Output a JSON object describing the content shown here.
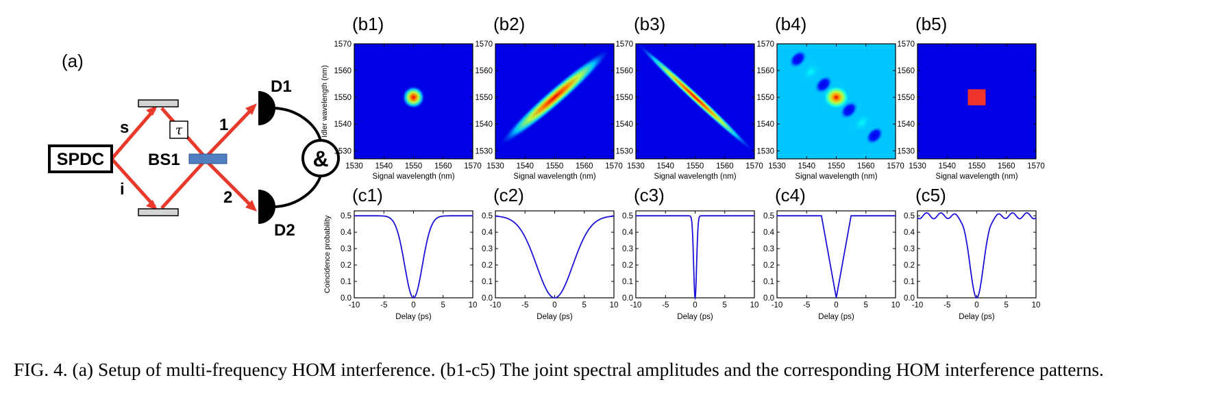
{
  "setup": {
    "label": "(a)",
    "source": "SPDC",
    "beam_splitter": "BS1",
    "delay": "τ",
    "coincidence": "&",
    "arm_signal": "s",
    "arm_idler": "i",
    "port_1": "1",
    "port_2": "2",
    "detector_1": "D1",
    "detector_2": "D2",
    "colors": {
      "beam": "#e8392b",
      "beam_splitter": "#4f7fc0",
      "mirror": "#d4d4d4"
    }
  },
  "jsa_labels": [
    "(b1)",
    "(b2)",
    "(b3)",
    "(b4)",
    "(b5)"
  ],
  "hom_labels": [
    "(c1)",
    "(c2)",
    "(c3)",
    "(c4)",
    "(c5)"
  ],
  "caption": "FIG. 4.  (a) Setup of multi-frequency HOM interference.  (b1-c5) The joint spectral amplitudes and the corresponding HOM interference patterns.",
  "chart_data": [
    {
      "type": "heatmap",
      "panel": "(b1)",
      "shape": "circular spot at center",
      "xlabel": "Signal wavelength (nm)",
      "ylabel": "Idler wavelength (nm)",
      "xlim": [
        1530,
        1570
      ],
      "ylim": [
        1527,
        1570
      ],
      "xticks": [
        1530,
        1540,
        1550,
        1560,
        1570
      ],
      "yticks": [
        1530,
        1540,
        1550,
        1560,
        1570
      ],
      "center": [
        1550,
        1550
      ]
    },
    {
      "type": "heatmap",
      "panel": "(b2)",
      "shape": "ellipse along positive diagonal",
      "xlabel": "Signal wavelength (nm)",
      "ylabel": "",
      "xlim": [
        1530,
        1570
      ],
      "ylim": [
        1527,
        1570
      ],
      "xticks": [
        1530,
        1540,
        1550,
        1560,
        1570
      ],
      "yticks": [
        1530,
        1540,
        1550,
        1560,
        1570
      ],
      "center": [
        1550,
        1550
      ]
    },
    {
      "type": "heatmap",
      "panel": "(b3)",
      "shape": "ellipse along negative diagonal",
      "xlabel": "Signal wavelength (nm)",
      "ylabel": "",
      "xlim": [
        1530,
        1570
      ],
      "ylim": [
        1527,
        1570
      ],
      "xticks": [
        1530,
        1540,
        1550,
        1560,
        1570
      ],
      "yticks": [
        1530,
        1540,
        1550,
        1560,
        1570
      ],
      "center": [
        1550,
        1550
      ]
    },
    {
      "type": "heatmap",
      "panel": "(b4)",
      "shape": "central spot with sinc side lobes along negative diagonal",
      "xlabel": "Signal wavelength (nm)",
      "ylabel": "",
      "xlim": [
        1530,
        1570
      ],
      "ylim": [
        1527,
        1570
      ],
      "xticks": [
        1530,
        1540,
        1550,
        1560,
        1570
      ],
      "yticks": [
        1530,
        1540,
        1550,
        1560,
        1570
      ],
      "center": [
        1550,
        1550
      ]
    },
    {
      "type": "heatmap",
      "panel": "(b5)",
      "shape": "uniform square 1547-1553 nm",
      "xlabel": "Signal wavelength (nm)",
      "ylabel": "",
      "xlim": [
        1530,
        1570
      ],
      "ylim": [
        1527,
        1570
      ],
      "xticks": [
        1530,
        1540,
        1550,
        1560,
        1570
      ],
      "yticks": [
        1530,
        1540,
        1550,
        1560,
        1570
      ],
      "square": [
        1547,
        1553
      ]
    },
    {
      "type": "line",
      "panel": "(c1)",
      "xlabel": "Delay (ps)",
      "ylabel": "Coincidence probability",
      "xlim": [
        -10,
        10
      ],
      "ylim": [
        0,
        0.53
      ],
      "xticks": [
        -10,
        -5,
        0,
        5,
        10
      ],
      "yticks": [
        0.0,
        0.1,
        0.2,
        0.3,
        0.4,
        0.5
      ],
      "dip": {
        "center": 0,
        "min": 0.0,
        "baseline": 0.5,
        "profile": "gaussian",
        "half_width_ps": 2.1
      }
    },
    {
      "type": "line",
      "panel": "(c2)",
      "xlabel": "Delay (ps)",
      "ylabel": "",
      "xlim": [
        -10,
        10
      ],
      "ylim": [
        0,
        0.53
      ],
      "xticks": [
        -10,
        -5,
        0,
        5,
        10
      ],
      "yticks": [
        0.0,
        0.1,
        0.2,
        0.3,
        0.4,
        0.5
      ],
      "dip": {
        "center": 0,
        "min": 0.0,
        "baseline": 0.5,
        "profile": "gaussian",
        "half_width_ps": 4.3
      }
    },
    {
      "type": "line",
      "panel": "(c3)",
      "xlabel": "Delay (ps)",
      "ylabel": "",
      "xlim": [
        -10,
        10
      ],
      "ylim": [
        0,
        0.53
      ],
      "xticks": [
        -10,
        -5,
        0,
        5,
        10
      ],
      "yticks": [
        0.0,
        0.1,
        0.2,
        0.3,
        0.4,
        0.5
      ],
      "dip": {
        "center": 0,
        "min": 0.0,
        "baseline": 0.5,
        "profile": "gaussian",
        "half_width_ps": 0.35
      }
    },
    {
      "type": "line",
      "panel": "(c4)",
      "xlabel": "Delay (ps)",
      "ylabel": "",
      "xlim": [
        -10,
        10
      ],
      "ylim": [
        0,
        0.53
      ],
      "xticks": [
        -10,
        -5,
        0,
        5,
        10
      ],
      "yticks": [
        0.0,
        0.1,
        0.2,
        0.3,
        0.4,
        0.5
      ],
      "dip": {
        "center": 0,
        "min": 0.0,
        "baseline": 0.5,
        "profile": "triangular",
        "half_width_ps": 2.5
      }
    },
    {
      "type": "line",
      "panel": "(c5)",
      "xlabel": "Delay (ps)",
      "ylabel": "",
      "xlim": [
        -10,
        10
      ],
      "ylim": [
        0,
        0.53
      ],
      "xticks": [
        -10,
        -5,
        0,
        5,
        10
      ],
      "yticks": [
        0.0,
        0.1,
        0.2,
        0.3,
        0.4,
        0.5
      ],
      "dip": {
        "center": 0,
        "min": 0.0,
        "baseline": 0.5,
        "profile": "sinc-like with side ripples",
        "half_width_ps": 1.6
      }
    }
  ]
}
